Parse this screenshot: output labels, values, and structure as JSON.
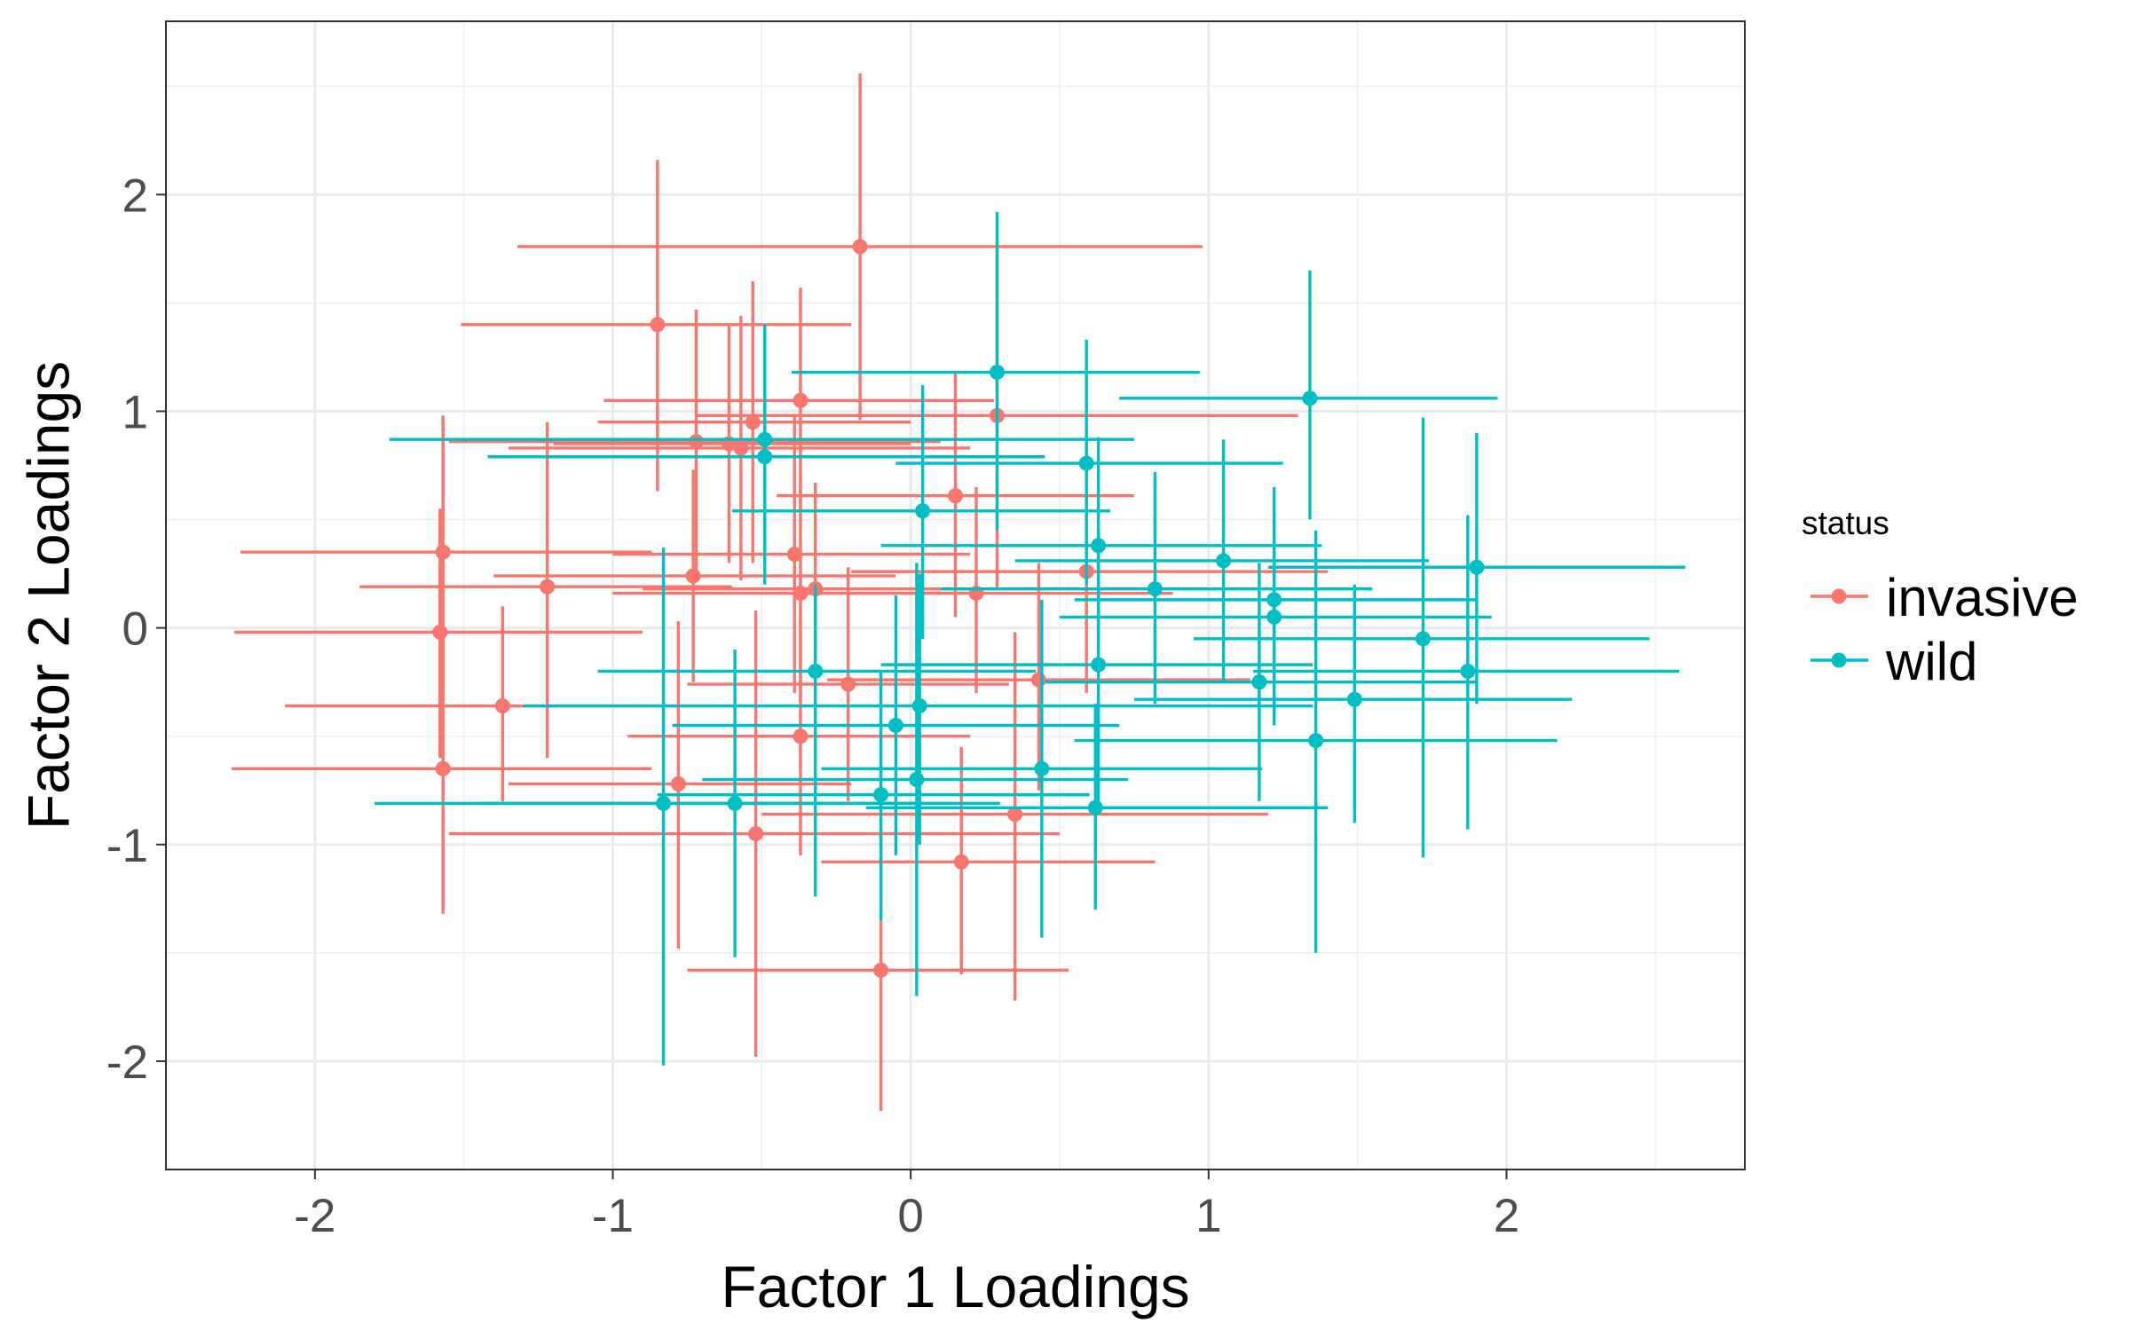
{
  "chart_data": {
    "type": "scatter",
    "title": "",
    "xlabel": "Factor 1 Loadings",
    "ylabel": "Factor 2 Loadings",
    "xlim": [
      -2.5,
      2.8
    ],
    "ylim": [
      -2.5,
      2.8
    ],
    "x_ticks": [
      -2,
      -1,
      0,
      1,
      2
    ],
    "y_ticks": [
      -2,
      -1,
      0,
      1,
      2
    ],
    "x_tick_labels": [
      "-2",
      "-1",
      "0",
      "1",
      "2"
    ],
    "y_tick_labels": [
      "-2",
      "-1",
      "0",
      "1",
      "2"
    ],
    "grid": true,
    "legend": {
      "title": "status",
      "position": "right"
    },
    "series": [
      {
        "name": "invasive",
        "color": "#F8766D",
        "points": [
          {
            "x": -0.17,
            "y": 1.76,
            "xmin": -1.32,
            "xmax": 0.98,
            "ymin": 0.96,
            "ymax": 2.56
          },
          {
            "x": -0.85,
            "y": 1.4,
            "xmin": -1.51,
            "xmax": -0.2,
            "ymin": 0.63,
            "ymax": 2.16
          },
          {
            "x": -0.37,
            "y": 1.05,
            "xmin": -1.03,
            "xmax": 0.28,
            "ymin": 0.52,
            "ymax": 1.57
          },
          {
            "x": 0.29,
            "y": 0.98,
            "xmin": -0.72,
            "xmax": 1.3,
            "ymin": 0.18,
            "ymax": 1.78
          },
          {
            "x": -0.53,
            "y": 0.95,
            "xmin": -1.05,
            "xmax": 0.0,
            "ymin": 0.3,
            "ymax": 1.6
          },
          {
            "x": -0.72,
            "y": 0.86,
            "xmin": -1.55,
            "xmax": 0.1,
            "ymin": 0.25,
            "ymax": 1.47
          },
          {
            "x": -0.61,
            "y": 0.85,
            "xmin": -1.2,
            "xmax": 0.0,
            "ymin": 0.3,
            "ymax": 1.4
          },
          {
            "x": -0.57,
            "y": 0.83,
            "xmin": -1.35,
            "xmax": 0.2,
            "ymin": 0.22,
            "ymax": 1.44
          },
          {
            "x": 0.15,
            "y": 0.61,
            "xmin": -0.45,
            "xmax": 0.75,
            "ymin": 0.05,
            "ymax": 1.18
          },
          {
            "x": -1.57,
            "y": 0.35,
            "xmin": -2.25,
            "xmax": -0.87,
            "ymin": -0.3,
            "ymax": 0.98
          },
          {
            "x": -0.39,
            "y": 0.34,
            "xmin": -1.0,
            "xmax": 0.2,
            "ymin": -0.3,
            "ymax": 0.98
          },
          {
            "x": 0.59,
            "y": 0.26,
            "xmin": -0.2,
            "xmax": 1.4,
            "ymin": -0.3,
            "ymax": 0.82
          },
          {
            "x": -0.73,
            "y": 0.24,
            "xmin": -1.4,
            "xmax": -0.05,
            "ymin": -0.25,
            "ymax": 0.73
          },
          {
            "x": -1.22,
            "y": 0.19,
            "xmin": -1.85,
            "xmax": -0.6,
            "ymin": -0.6,
            "ymax": 0.95
          },
          {
            "x": -0.32,
            "y": 0.18,
            "xmin": -0.9,
            "xmax": 0.28,
            "ymin": -0.3,
            "ymax": 0.67
          },
          {
            "x": -0.37,
            "y": 0.16,
            "xmin": -1.0,
            "xmax": 0.25,
            "ymin": -0.35,
            "ymax": 0.7
          },
          {
            "x": 0.22,
            "y": 0.16,
            "xmin": -0.45,
            "xmax": 0.88,
            "ymin": -0.3,
            "ymax": 0.65
          },
          {
            "x": -1.58,
            "y": -0.02,
            "xmin": -2.27,
            "xmax": -0.9,
            "ymin": -0.6,
            "ymax": 0.55
          },
          {
            "x": 0.43,
            "y": -0.24,
            "xmin": -0.28,
            "xmax": 1.14,
            "ymin": -0.75,
            "ymax": 0.3
          },
          {
            "x": -0.21,
            "y": -0.26,
            "xmin": -0.75,
            "xmax": 0.33,
            "ymin": -0.8,
            "ymax": 0.28
          },
          {
            "x": -1.37,
            "y": -0.36,
            "xmin": -2.1,
            "xmax": -0.65,
            "ymin": -0.8,
            "ymax": 0.1
          },
          {
            "x": -0.37,
            "y": -0.5,
            "xmin": -0.95,
            "xmax": 0.2,
            "ymin": -1.05,
            "ymax": 0.05
          },
          {
            "x": -1.57,
            "y": -0.65,
            "xmin": -2.28,
            "xmax": -0.87,
            "ymin": -1.32,
            "ymax": 0.0
          },
          {
            "x": -0.78,
            "y": -0.72,
            "xmin": -1.35,
            "xmax": -0.2,
            "ymin": -1.48,
            "ymax": 0.03
          },
          {
            "x": 0.35,
            "y": -0.86,
            "xmin": -0.5,
            "xmax": 1.2,
            "ymin": -1.72,
            "ymax": -0.02
          },
          {
            "x": -0.52,
            "y": -0.95,
            "xmin": -1.55,
            "xmax": 0.5,
            "ymin": -1.98,
            "ymax": 0.08
          },
          {
            "x": 0.17,
            "y": -1.08,
            "xmin": -0.3,
            "xmax": 0.82,
            "ymin": -1.6,
            "ymax": -0.55
          },
          {
            "x": -0.1,
            "y": -1.58,
            "xmin": -0.75,
            "xmax": 0.53,
            "ymin": -2.23,
            "ymax": -0.93
          }
        ]
      },
      {
        "name": "wild",
        "color": "#00BFC4",
        "points": [
          {
            "x": 1.34,
            "y": 1.06,
            "xmin": 0.7,
            "xmax": 1.97,
            "ymin": 0.5,
            "ymax": 1.65
          },
          {
            "x": 0.29,
            "y": 1.18,
            "xmin": -0.4,
            "xmax": 0.97,
            "ymin": 0.45,
            "ymax": 1.92
          },
          {
            "x": -0.49,
            "y": 0.87,
            "xmin": -1.75,
            "xmax": 0.75,
            "ymin": 0.35,
            "ymax": 1.4
          },
          {
            "x": -0.49,
            "y": 0.79,
            "xmin": -1.42,
            "xmax": 0.45,
            "ymin": 0.2,
            "ymax": 1.38
          },
          {
            "x": 0.59,
            "y": 0.76,
            "xmin": -0.05,
            "xmax": 1.25,
            "ymin": 0.2,
            "ymax": 1.33
          },
          {
            "x": 0.04,
            "y": 0.54,
            "xmin": -0.6,
            "xmax": 0.67,
            "ymin": -0.05,
            "ymax": 1.12
          },
          {
            "x": 0.63,
            "y": 0.38,
            "xmin": -0.1,
            "xmax": 1.38,
            "ymin": -0.1,
            "ymax": 0.88
          },
          {
            "x": 1.05,
            "y": 0.31,
            "xmin": 0.35,
            "xmax": 1.74,
            "ymin": -0.25,
            "ymax": 0.87
          },
          {
            "x": 1.9,
            "y": 0.28,
            "xmin": 1.2,
            "xmax": 2.6,
            "ymin": -0.35,
            "ymax": 0.9
          },
          {
            "x": 0.82,
            "y": 0.18,
            "xmin": 0.1,
            "xmax": 1.55,
            "ymin": -0.35,
            "ymax": 0.72
          },
          {
            "x": 1.22,
            "y": 0.13,
            "xmin": 0.55,
            "xmax": 1.9,
            "ymin": -0.4,
            "ymax": 0.65
          },
          {
            "x": 1.22,
            "y": 0.05,
            "xmin": 0.5,
            "xmax": 1.95,
            "ymin": -0.45,
            "ymax": 0.55
          },
          {
            "x": 1.72,
            "y": -0.05,
            "xmin": 0.95,
            "xmax": 2.48,
            "ymin": -1.06,
            "ymax": 0.97
          },
          {
            "x": 0.63,
            "y": -0.17,
            "xmin": -0.1,
            "xmax": 1.35,
            "ymin": -0.8,
            "ymax": 0.45
          },
          {
            "x": -0.32,
            "y": -0.2,
            "xmin": -1.05,
            "xmax": 0.42,
            "ymin": -1.24,
            "ymax": 0.2
          },
          {
            "x": 1.87,
            "y": -0.2,
            "xmin": 1.15,
            "xmax": 2.58,
            "ymin": -0.93,
            "ymax": 0.52
          },
          {
            "x": 1.17,
            "y": -0.25,
            "xmin": 0.45,
            "xmax": 1.9,
            "ymin": -0.8,
            "ymax": 0.3
          },
          {
            "x": 1.49,
            "y": -0.33,
            "xmin": 0.75,
            "xmax": 2.22,
            "ymin": -0.9,
            "ymax": 0.2
          },
          {
            "x": 0.03,
            "y": -0.36,
            "xmin": -1.3,
            "xmax": 1.35,
            "ymin": -1.0,
            "ymax": 0.25
          },
          {
            "x": -0.05,
            "y": -0.45,
            "xmin": -0.8,
            "xmax": 0.7,
            "ymin": -1.05,
            "ymax": 0.15
          },
          {
            "x": 1.36,
            "y": -0.52,
            "xmin": 0.55,
            "xmax": 2.17,
            "ymin": -1.5,
            "ymax": 0.45
          },
          {
            "x": 0.44,
            "y": -0.65,
            "xmin": -0.3,
            "xmax": 1.18,
            "ymin": -1.43,
            "ymax": 0.13
          },
          {
            "x": 0.02,
            "y": -0.7,
            "xmin": -0.7,
            "xmax": 0.73,
            "ymin": -1.7,
            "ymax": 0.3
          },
          {
            "x": -0.1,
            "y": -0.77,
            "xmin": -0.85,
            "xmax": 0.6,
            "ymin": -1.35,
            "ymax": -0.2
          },
          {
            "x": -0.59,
            "y": -0.81,
            "xmin": -1.45,
            "xmax": 0.3,
            "ymin": -1.52,
            "ymax": -0.1
          },
          {
            "x": -0.83,
            "y": -0.81,
            "xmin": -1.8,
            "xmax": 0.13,
            "ymin": -2.02,
            "ymax": 0.37
          },
          {
            "x": 0.62,
            "y": -0.83,
            "xmin": -0.15,
            "xmax": 1.4,
            "ymin": -1.3,
            "ymax": -0.35
          }
        ]
      }
    ]
  }
}
